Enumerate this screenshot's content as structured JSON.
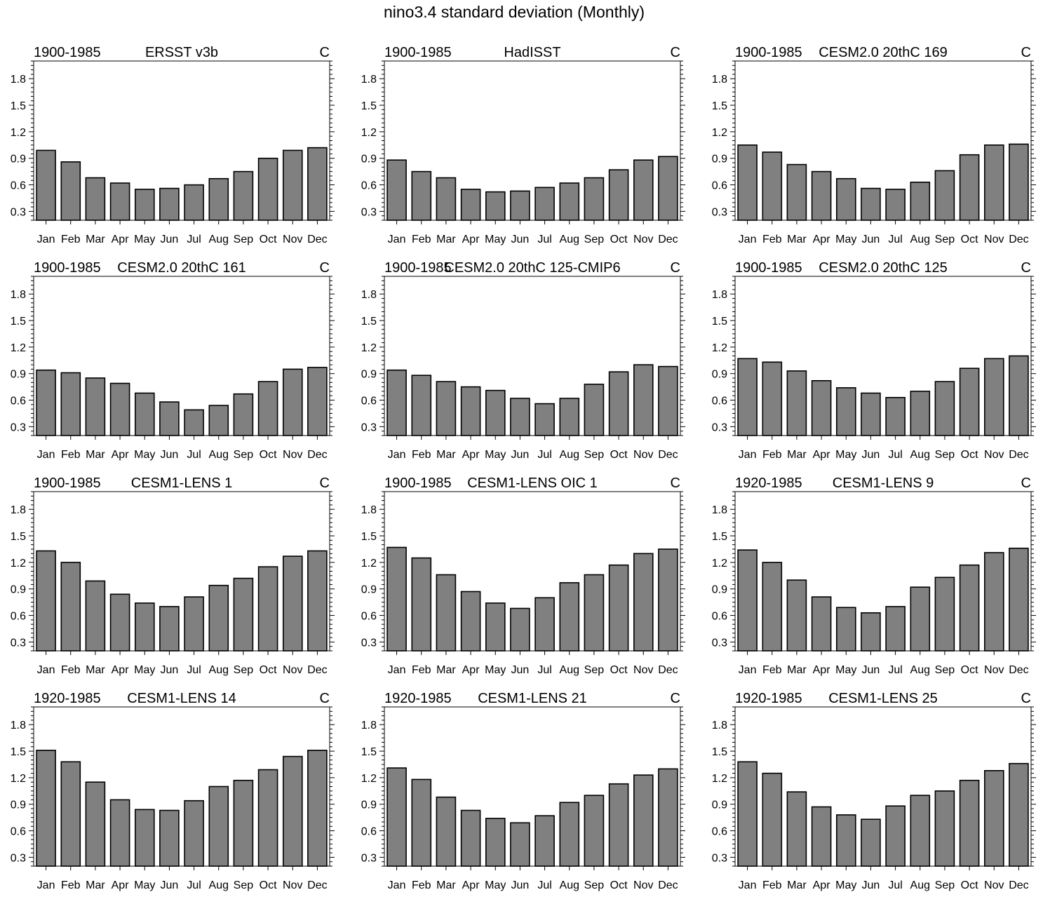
{
  "title": "nino3.4 standard deviation (Monthly)",
  "colors": {
    "bar_fill": "#808080",
    "bar_stroke": "#000000",
    "frame": "#000000",
    "text": "#000000"
  },
  "chart_data": {
    "type": "bar",
    "layout": "4x3 panel grid",
    "categories": [
      "Jan",
      "Feb",
      "Mar",
      "Apr",
      "May",
      "Jun",
      "Jul",
      "Aug",
      "Sep",
      "Oct",
      "Nov",
      "Dec"
    ],
    "yticks": [
      "0.3",
      "0.6",
      "0.9",
      "1.2",
      "1.5",
      "1.8"
    ],
    "ylim": [
      0.2,
      2.0
    ],
    "panels": [
      {
        "period": "1900-1985",
        "name": "ERSST v3b",
        "units": "C",
        "values": [
          0.99,
          0.86,
          0.68,
          0.62,
          0.55,
          0.56,
          0.6,
          0.67,
          0.75,
          0.9,
          0.99,
          1.02
        ]
      },
      {
        "period": "1900-1985",
        "name": "HadISST",
        "units": "C",
        "values": [
          0.88,
          0.75,
          0.68,
          0.55,
          0.52,
          0.53,
          0.57,
          0.62,
          0.68,
          0.77,
          0.88,
          0.92
        ]
      },
      {
        "period": "1900-1985",
        "name": "CESM2.0 20thC 169",
        "units": "C",
        "values": [
          1.05,
          0.97,
          0.83,
          0.75,
          0.67,
          0.56,
          0.55,
          0.63,
          0.76,
          0.94,
          1.05,
          1.06
        ]
      },
      {
        "period": "1900-1985",
        "name": "CESM2.0 20thC 161",
        "units": "C",
        "values": [
          0.94,
          0.91,
          0.85,
          0.79,
          0.68,
          0.58,
          0.49,
          0.54,
          0.67,
          0.81,
          0.95,
          0.97
        ]
      },
      {
        "period": "1900-1985",
        "name": "CESM2.0 20thC 125-CMIP6",
        "units": "C",
        "values": [
          0.94,
          0.88,
          0.81,
          0.75,
          0.71,
          0.62,
          0.56,
          0.62,
          0.78,
          0.92,
          1.0,
          0.98
        ]
      },
      {
        "period": "1900-1985",
        "name": "CESM2.0 20thC 125",
        "units": "C",
        "values": [
          1.07,
          1.03,
          0.93,
          0.82,
          0.74,
          0.68,
          0.63,
          0.7,
          0.81,
          0.96,
          1.07,
          1.1
        ]
      },
      {
        "period": "1900-1985",
        "name": "CESM1-LENS 1",
        "units": "C",
        "values": [
          1.33,
          1.2,
          0.99,
          0.84,
          0.74,
          0.7,
          0.81,
          0.94,
          1.02,
          1.15,
          1.27,
          1.33
        ]
      },
      {
        "period": "1900-1985",
        "name": "CESM1-LENS OIC 1",
        "units": "C",
        "values": [
          1.37,
          1.25,
          1.06,
          0.87,
          0.74,
          0.68,
          0.8,
          0.97,
          1.06,
          1.17,
          1.3,
          1.35
        ]
      },
      {
        "period": "1920-1985",
        "name": "CESM1-LENS 9",
        "units": "C",
        "values": [
          1.34,
          1.2,
          1.0,
          0.81,
          0.69,
          0.63,
          0.7,
          0.92,
          1.03,
          1.17,
          1.31,
          1.36
        ]
      },
      {
        "period": "1920-1985",
        "name": "CESM1-LENS 14",
        "units": "C",
        "values": [
          1.51,
          1.38,
          1.15,
          0.95,
          0.84,
          0.83,
          0.94,
          1.1,
          1.17,
          1.29,
          1.44,
          1.51
        ]
      },
      {
        "period": "1920-1985",
        "name": "CESM1-LENS 21",
        "units": "C",
        "values": [
          1.31,
          1.18,
          0.98,
          0.83,
          0.74,
          0.69,
          0.77,
          0.92,
          1.0,
          1.13,
          1.23,
          1.3
        ]
      },
      {
        "period": "1920-1985",
        "name": "CESM1-LENS 25",
        "units": "C",
        "values": [
          1.38,
          1.25,
          1.04,
          0.87,
          0.78,
          0.73,
          0.88,
          1.0,
          1.05,
          1.17,
          1.28,
          1.36
        ]
      }
    ]
  }
}
